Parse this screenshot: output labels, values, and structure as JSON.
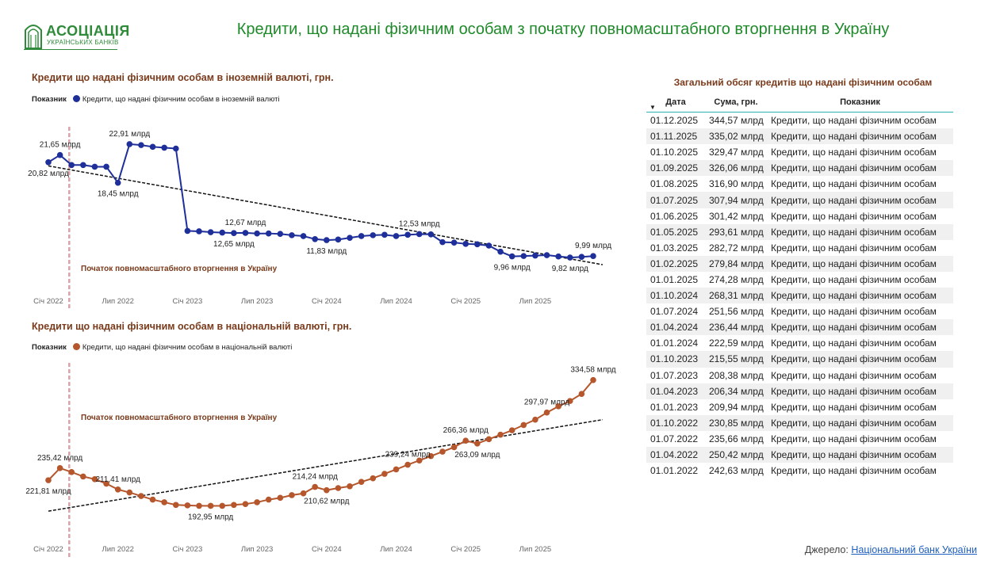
{
  "logo": {
    "line1": "АСОЦІАЦІЯ",
    "line2": "УКРАЇНСЬКИХ БАНКІВ"
  },
  "page_title": "Кредити, що надані фізичним особам з початку повномасштабного вторгнення в Україну",
  "colors": {
    "title_green": "#1f8a2a",
    "chart_title_brown": "#7a3b1c",
    "foreign_series": "#1e2f9a",
    "national_series": "#b5562c",
    "invasion_line": "#d9a3a8",
    "trend": "#111111"
  },
  "chart_data": [
    {
      "type": "line",
      "title": "Кредити що надані фізичним особам  в іноземній валюті, грн.",
      "legend_label": "Показник",
      "series_name": "Кредити, що надані фізичним особам в іноземній валюті",
      "unit": "млрд",
      "x_start_index_label": "Січ 2022",
      "xticks": [
        {
          "i": 0,
          "label": "Січ 2022"
        },
        {
          "i": 6,
          "label": "Лип 2022"
        },
        {
          "i": 12,
          "label": "Січ 2023"
        },
        {
          "i": 18,
          "label": "Лип 2023"
        },
        {
          "i": 24,
          "label": "Січ 2024"
        },
        {
          "i": 30,
          "label": "Лип 2024"
        },
        {
          "i": 36,
          "label": "Січ 2025"
        },
        {
          "i": 42,
          "label": "Лип 2025"
        }
      ],
      "values": [
        20.82,
        21.65,
        20.5,
        20.5,
        20.3,
        20.3,
        18.45,
        22.91,
        22.8,
        22.6,
        22.5,
        22.4,
        12.9,
        12.85,
        12.75,
        12.7,
        12.65,
        12.67,
        12.6,
        12.6,
        12.55,
        12.4,
        12.3,
        11.95,
        11.83,
        11.9,
        12.1,
        12.3,
        12.4,
        12.45,
        12.3,
        12.45,
        12.53,
        12.5,
        11.6,
        11.55,
        11.4,
        11.35,
        11.2,
        10.5,
        9.96,
        10.0,
        10.05,
        10.1,
        9.95,
        9.82,
        9.9,
        9.99
      ],
      "ylim": [
        8.0,
        24.0
      ],
      "trend": [
        20.4,
        9.0
      ],
      "invasion_index": 1.8,
      "invasion_label": "Початок повномасштабного вторгнення в Україну",
      "data_labels": [
        {
          "i": 0,
          "text": "20,82 млрд",
          "pos": "below"
        },
        {
          "i": 1,
          "text": "21,65 млрд",
          "pos": "above"
        },
        {
          "i": 6,
          "text": "18,45 млрд",
          "pos": "below"
        },
        {
          "i": 7,
          "text": "22,91 млрд",
          "pos": "above"
        },
        {
          "i": 16,
          "text": "12,65 млрд",
          "pos": "below"
        },
        {
          "i": 17,
          "text": "12,67 млрд",
          "pos": "above"
        },
        {
          "i": 24,
          "text": "11,83 млрд",
          "pos": "below"
        },
        {
          "i": 32,
          "text": "12,53 млрд",
          "pos": "above"
        },
        {
          "i": 40,
          "text": "9,96 млрд",
          "pos": "below"
        },
        {
          "i": 45,
          "text": "9,82 млрд",
          "pos": "below"
        },
        {
          "i": 47,
          "text": "9,99 млрд",
          "pos": "above"
        }
      ]
    },
    {
      "type": "line",
      "title": "Кредити що надані фізичним особам  в національній  валюті, грн.",
      "legend_label": "Показник",
      "series_name": "Кредити, що надані фізичним особам в національній валюті",
      "unit": "млрд",
      "xticks": [
        {
          "i": 0,
          "label": "Січ 2022"
        },
        {
          "i": 6,
          "label": "Лип 2022"
        },
        {
          "i": 12,
          "label": "Січ 2023"
        },
        {
          "i": 18,
          "label": "Лип 2023"
        },
        {
          "i": 24,
          "label": "Січ 2024"
        },
        {
          "i": 30,
          "label": "Лип 2024"
        },
        {
          "i": 36,
          "label": "Січ 2025"
        },
        {
          "i": 42,
          "label": "Лип 2025"
        }
      ],
      "values": [
        221.81,
        235.42,
        231,
        226,
        223,
        218,
        211.41,
        208,
        204,
        200,
        197,
        194,
        193.5,
        193,
        192.95,
        193,
        194,
        195,
        197,
        200,
        202,
        205,
        207,
        214.24,
        210.62,
        213,
        215,
        220,
        224,
        229,
        234,
        239.24,
        244,
        249,
        254,
        259,
        266.36,
        263.09,
        268,
        273,
        278,
        284,
        290,
        297.97,
        305,
        311,
        319,
        334.58
      ],
      "ylim": [
        180,
        345
      ],
      "trend": [
        187,
        290
      ],
      "invasion_index": 1.8,
      "invasion_label": "Початок повномасштабного вторгнення в Україну",
      "data_labels": [
        {
          "i": 0,
          "text": "221,81 млрд",
          "pos": "below"
        },
        {
          "i": 1,
          "text": "235,42 млрд",
          "pos": "above"
        },
        {
          "i": 6,
          "text": "211,41 млрд",
          "pos": "above"
        },
        {
          "i": 14,
          "text": "192,95 млрд",
          "pos": "below"
        },
        {
          "i": 23,
          "text": "214,24 млрд",
          "pos": "above"
        },
        {
          "i": 24,
          "text": "210,62 млрд",
          "pos": "below"
        },
        {
          "i": 31,
          "text": "239,24 млрд",
          "pos": "above"
        },
        {
          "i": 36,
          "text": "266,36 млрд",
          "pos": "above"
        },
        {
          "i": 37,
          "text": "263,09 млрд",
          "pos": "below"
        },
        {
          "i": 43,
          "text": "297,97 млрд",
          "pos": "above"
        },
        {
          "i": 47,
          "text": "334,58 млрд",
          "pos": "above"
        }
      ]
    }
  ],
  "table": {
    "title": "Загальний обсяг кредитів що надані фізичним особам",
    "headers": [
      "Дата",
      "Сума, грн.",
      "Показник"
    ],
    "rows": [
      [
        "01.12.2025",
        "344,57 млрд",
        "Кредити, що надані фізичним особам"
      ],
      [
        "01.11.2025",
        "335,02 млрд",
        "Кредити, що надані фізичним особам"
      ],
      [
        "01.10.2025",
        "329,47 млрд",
        "Кредити, що надані фізичним особам"
      ],
      [
        "01.09.2025",
        "326,06 млрд",
        "Кредити, що надані фізичним особам"
      ],
      [
        "01.08.2025",
        "316,90 млрд",
        "Кредити, що надані фізичним особам"
      ],
      [
        "01.07.2025",
        "307,94 млрд",
        "Кредити, що надані фізичним особам"
      ],
      [
        "01.06.2025",
        "301,42 млрд",
        "Кредити, що надані фізичним особам"
      ],
      [
        "01.05.2025",
        "293,61 млрд",
        "Кредити, що надані фізичним особам"
      ],
      [
        "01.03.2025",
        "282,72 млрд",
        "Кредити, що надані фізичним особам"
      ],
      [
        "01.02.2025",
        "279,84 млрд",
        "Кредити, що надані фізичним особам"
      ],
      [
        "01.01.2025",
        "274,28 млрд",
        "Кредити, що надані фізичним особам"
      ],
      [
        "01.10.2024",
        "268,31 млрд",
        "Кредити, що надані фізичним особам"
      ],
      [
        "01.07.2024",
        "251,56 млрд",
        "Кредити, що надані фізичним особам"
      ],
      [
        "01.04.2024",
        "236,44 млрд",
        "Кредити, що надані фізичним особам"
      ],
      [
        "01.01.2024",
        "222,59 млрд",
        "Кредити, що надані фізичним особам"
      ],
      [
        "01.10.2023",
        "215,55 млрд",
        "Кредити, що надані фізичним особам"
      ],
      [
        "01.07.2023",
        "208,38 млрд",
        "Кредити, що надані фізичним особам"
      ],
      [
        "01.04.2023",
        "206,34 млрд",
        "Кредити, що надані фізичним особам"
      ],
      [
        "01.01.2023",
        "209,94 млрд",
        "Кредити, що надані фізичним особам"
      ],
      [
        "01.10.2022",
        "230,85 млрд",
        "Кредити, що надані фізичним особам"
      ],
      [
        "01.07.2022",
        "235,66 млрд",
        "Кредити, що надані фізичним особам"
      ],
      [
        "01.04.2022",
        "250,42 млрд",
        "Кредити, що надані фізичним особам"
      ],
      [
        "01.01.2022",
        "242,63 млрд",
        "Кредити, що надані фізичним особам"
      ]
    ]
  },
  "source": {
    "prefix": "Джерело:",
    "link_text": "Національний банк України"
  }
}
